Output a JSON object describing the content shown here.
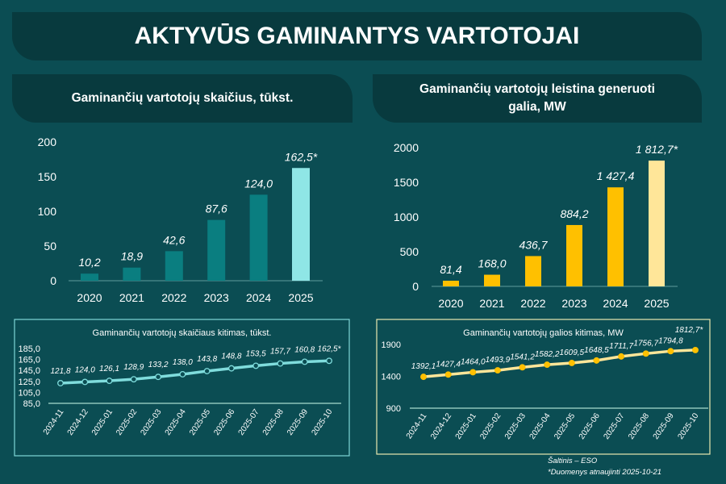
{
  "title": "AKTYVŪS GAMINANTYS VARTOTOJAI",
  "source": "Šaltinis – ESO",
  "footnote": "*Duomenys atnaujinti 2025-10-21",
  "chart_data": [
    {
      "type": "bar",
      "title": "Gaminančių vartotojų skaičius, tūkst.",
      "categories": [
        "2020",
        "2021",
        "2022",
        "2023",
        "2024",
        "2025"
      ],
      "values": [
        10.2,
        18.9,
        42.6,
        87.6,
        124.0,
        162.5
      ],
      "labels": [
        "10,2",
        "18,9",
        "42,6",
        "87,6",
        "124,0",
        "162,5*"
      ],
      "yticks": [
        "0",
        "50",
        "100",
        "150",
        "200"
      ],
      "ylim": [
        0,
        200
      ],
      "colors": [
        "#0a7e80",
        "#8fe6e6"
      ]
    },
    {
      "type": "bar",
      "title": "Gaminančių vartotojų leistina generuoti galia, MW",
      "categories": [
        "2020",
        "2021",
        "2022",
        "2023",
        "2024",
        "2025"
      ],
      "values": [
        81.4,
        168.0,
        436.7,
        884.2,
        1427.4,
        1812.7
      ],
      "labels": [
        "81,4",
        "168,0",
        "436,7",
        "884,2",
        "1 427,4",
        "1 812,7*"
      ],
      "yticks": [
        "0",
        "500",
        "1000",
        "1500",
        "2000"
      ],
      "ylim": [
        0,
        2000
      ],
      "colors": [
        "#ffc000",
        "#ffe699"
      ]
    },
    {
      "type": "line",
      "title": "Gaminančių vartotojų skaičiaus kitimas, tūkst.",
      "categories": [
        "2024-11",
        "2024-12",
        "2025-01",
        "2025-02",
        "2025-03",
        "2025-04",
        "2025-05",
        "2025-06",
        "2025-07",
        "2025-08",
        "2025-09",
        "2025-10"
      ],
      "values": [
        121.8,
        124.0,
        126.1,
        128.9,
        133.2,
        138.0,
        143.8,
        148.8,
        153.5,
        157.7,
        160.8,
        162.5
      ],
      "labels": [
        "121,8",
        "124,0",
        "126,1",
        "128,9",
        "133,2",
        "138,0",
        "143,8",
        "148,8",
        "153,5",
        "157,7",
        "160,8",
        "162,5*"
      ],
      "yticks": [
        "85,0",
        "105,0",
        "125,0",
        "145,0",
        "165,0",
        "185,0"
      ],
      "ylim": [
        85,
        185
      ],
      "color": "#7fdcdc"
    },
    {
      "type": "line",
      "title": "Gaminančių vartotojų galios kitimas, MW",
      "categories": [
        "2024-11",
        "2024-12",
        "2025-01",
        "2025-02",
        "2025-03",
        "2025-04",
        "2025-05",
        "2025-06",
        "2025-07",
        "2025-08",
        "2025-09",
        "2025-10"
      ],
      "values": [
        1392.1,
        1427.4,
        1464.0,
        1493.9,
        1541.2,
        1582.2,
        1609.5,
        1648.5,
        1711.7,
        1756.7,
        1794.8,
        1812.7
      ],
      "labels": [
        "1392,1",
        "1427,4",
        "1464,0",
        "1493,9",
        "1541,2",
        "1582,2",
        "1609,5",
        "1648,5",
        "1711,7",
        "1756,7",
        "1794,8",
        "1812,7*"
      ],
      "yticks": [
        "900",
        "1400",
        "1900"
      ],
      "ylim": [
        900,
        1900
      ],
      "color": "#ffe699",
      "markerColor": "#ffc000"
    }
  ]
}
